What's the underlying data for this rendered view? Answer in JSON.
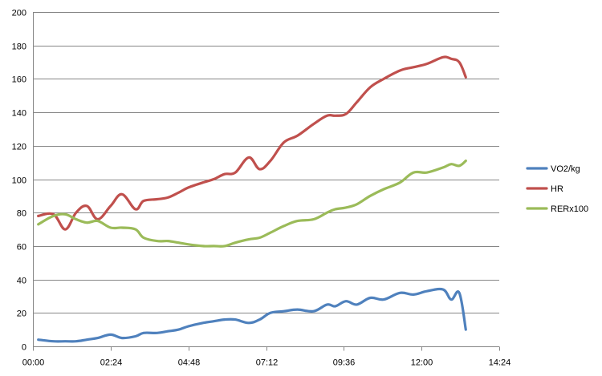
{
  "chart_data": {
    "type": "line",
    "title": "",
    "xlabel": "",
    "ylabel": "",
    "x_tick_labels": [
      "00:00",
      "02:24",
      "04:48",
      "07:12",
      "09:36",
      "12:00",
      "14:24"
    ],
    "y_tick_labels": [
      "0",
      "20",
      "40",
      "60",
      "80",
      "100",
      "120",
      "140",
      "160",
      "180",
      "200"
    ],
    "xlim": [
      "00:00",
      "14:24"
    ],
    "ylim": [
      0,
      200
    ],
    "grid": "horizontal",
    "legend_position": "right",
    "x": [
      "00:10",
      "00:38",
      "01:00",
      "01:20",
      "01:40",
      "02:00",
      "02:24",
      "02:45",
      "03:10",
      "03:25",
      "03:50",
      "04:10",
      "04:30",
      "04:48",
      "05:15",
      "05:35",
      "05:55",
      "06:15",
      "06:40",
      "07:00",
      "07:20",
      "07:45",
      "08:10",
      "08:40",
      "09:05",
      "09:20",
      "09:40",
      "10:00",
      "10:25",
      "10:50",
      "11:20",
      "11:45",
      "12:10",
      "12:40",
      "12:55",
      "13:10",
      "13:22"
    ],
    "series": [
      {
        "name": "VO2/kg",
        "color": "#4F81BD",
        "values": [
          4,
          3,
          3,
          3,
          4,
          5,
          7,
          5,
          6,
          8,
          8,
          9,
          10,
          12,
          14,
          15,
          16,
          16,
          14,
          16,
          20,
          21,
          22,
          21,
          25,
          24,
          27,
          25,
          29,
          28,
          32,
          31,
          33,
          34,
          28,
          32,
          10
        ]
      },
      {
        "name": "HR",
        "color": "#C0504D",
        "values": [
          78,
          79,
          70,
          80,
          84,
          76,
          84,
          91,
          82,
          87,
          88,
          89,
          92,
          95,
          98,
          100,
          103,
          104,
          113,
          106,
          111,
          122,
          126,
          133,
          138,
          138,
          139,
          146,
          155,
          160,
          165,
          167,
          169,
          173,
          172,
          170,
          161
        ]
      },
      {
        "name": "RERx100",
        "color": "#9BBB59",
        "values": [
          73,
          78,
          79,
          76,
          74,
          75,
          71,
          71,
          70,
          65,
          63,
          63,
          62,
          61,
          60,
          60,
          60,
          62,
          64,
          65,
          68,
          72,
          75,
          76,
          80,
          82,
          83,
          85,
          90,
          94,
          98,
          104,
          104,
          107,
          109,
          108,
          111
        ]
      }
    ]
  }
}
